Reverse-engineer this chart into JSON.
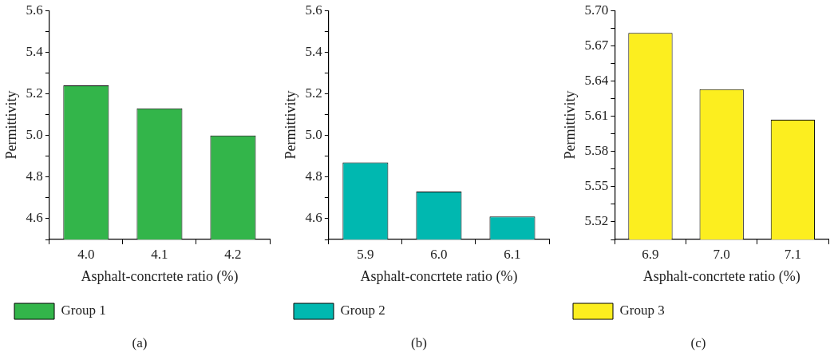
{
  "chart_data": [
    {
      "type": "bar",
      "categories": [
        "4.0",
        "4.1",
        "4.2"
      ],
      "xlabel": "Asphalt-concrtete ratio (%)",
      "ylabel": "Permittivity",
      "series": [
        {
          "name": "Group 1",
          "color": "#33b54a",
          "values": [
            5.24,
            5.13,
            5.0
          ]
        }
      ],
      "ylim": [
        4.5,
        5.6
      ],
      "yticks": [
        {
          "value": 4.5,
          "label": null
        },
        4.6,
        {
          "value": 4.7,
          "label": null
        },
        4.8,
        {
          "value": 4.9,
          "label": null
        },
        {
          "value": 5.0,
          "label": "5.0"
        },
        {
          "value": 5.1,
          "label": null
        },
        5.2,
        {
          "value": 5.3,
          "label": null
        },
        5.4,
        {
          "value": 5.5,
          "label": null
        },
        5.6
      ],
      "legend": "bottom",
      "annotations": [
        "(a)"
      ]
    },
    {
      "type": "bar",
      "categories": [
        "5.9",
        "6.0",
        "6.1"
      ],
      "xlabel": "Asphalt-concrtete ratio (%)",
      "ylabel": "Permittivity",
      "series": [
        {
          "name": "Group 2",
          "color": "#00b8b0",
          "values": [
            4.87,
            4.73,
            4.61
          ]
        }
      ],
      "ylim": [
        4.5,
        5.6
      ],
      "yticks": [
        {
          "value": 4.5,
          "label": null
        },
        4.6,
        {
          "value": 4.7,
          "label": null
        },
        4.8,
        {
          "value": 4.9,
          "label": null
        },
        {
          "value": 5.0,
          "label": "5.0"
        },
        {
          "value": 5.1,
          "label": null
        },
        5.2,
        {
          "value": 5.3,
          "label": null
        },
        5.4,
        {
          "value": 5.5,
          "label": null
        },
        5.6
      ],
      "legend": "bottom",
      "annotations": [
        "(b)"
      ]
    },
    {
      "type": "bar",
      "categories": [
        "6.9",
        "7.0",
        "7.1"
      ],
      "xlabel": "Asphalt-concrtete ratio (%)",
      "ylabel": "Permittivity",
      "series": [
        {
          "name": "Group 3",
          "color": "#fcee1f",
          "values": [
            5.681,
            5.633,
            5.607
          ]
        }
      ],
      "ylim": [
        5.505,
        5.7
      ],
      "yticks": [
        {
          "value": 5.505,
          "label": null
        },
        5.52,
        {
          "value": 5.535,
          "label": null
        },
        5.55,
        {
          "value": 5.565,
          "label": null
        },
        5.58,
        {
          "value": 5.595,
          "label": null
        },
        5.61,
        {
          "value": 5.625,
          "label": null
        },
        5.64,
        {
          "value": 5.655,
          "label": null
        },
        5.67,
        {
          "value": 5.685,
          "label": null
        },
        {
          "value": 5.7,
          "label": "5.70"
        }
      ],
      "legend": "bottom",
      "annotations": [
        "(c)"
      ]
    }
  ]
}
